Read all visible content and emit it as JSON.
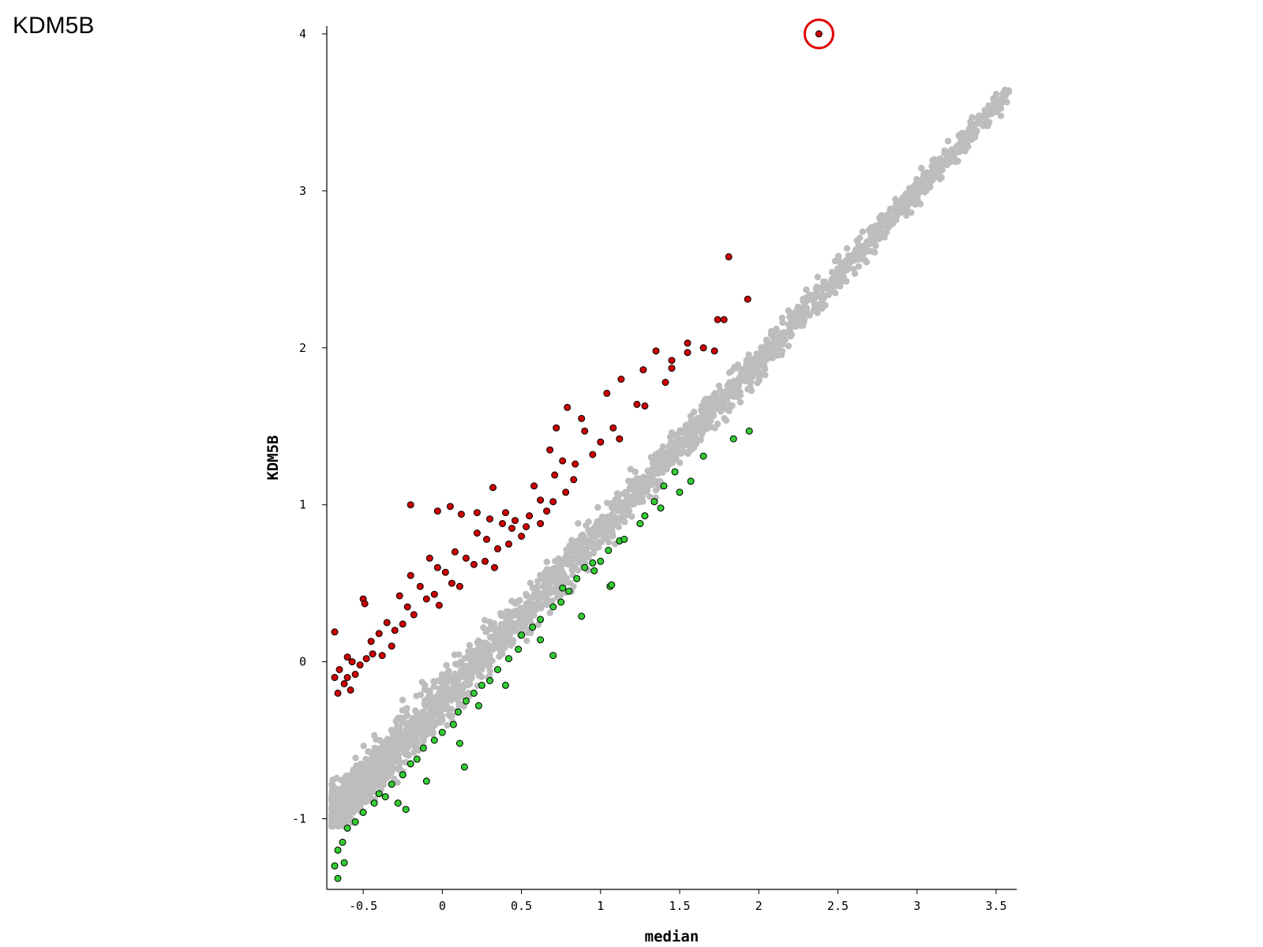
{
  "slide_title": "KDM5B",
  "chart_data": {
    "type": "scatter",
    "title": "",
    "xlabel": "median",
    "ylabel": "KDM5B",
    "xlim": [
      -0.73,
      3.63
    ],
    "ylim": [
      -1.45,
      4.05
    ],
    "x_ticks": [
      -0.5,
      0,
      0.5,
      1,
      1.5,
      2,
      2.5,
      3,
      3.5
    ],
    "x_tick_labels": [
      "-0.5",
      "0",
      "0.5",
      "1",
      "1.5",
      "2",
      "2.5",
      "3",
      "3.5"
    ],
    "y_ticks": [
      -1,
      0,
      1,
      2,
      3,
      4
    ],
    "y_tick_labels": [
      "-1",
      "0",
      "1",
      "2",
      "3",
      "4"
    ],
    "grid": false,
    "colors": {
      "up": "#cc0000",
      "down": "#33cc33",
      "neutral": "#bdbdbd",
      "highlight_ring": "#e00000"
    },
    "highlighted_point": {
      "x": 2.38,
      "y": 4.0
    },
    "series": [
      {
        "kind": "up",
        "color": "#cc0000",
        "points": [
          [
            2.38,
            4.0
          ],
          [
            1.81,
            2.58
          ],
          [
            1.93,
            2.31
          ],
          [
            1.74,
            2.18
          ],
          [
            1.78,
            2.18
          ],
          [
            1.55,
            2.03
          ],
          [
            1.55,
            1.97
          ],
          [
            1.65,
            2.0
          ],
          [
            1.72,
            1.98
          ],
          [
            1.35,
            1.98
          ],
          [
            1.45,
            1.92
          ],
          [
            1.45,
            1.87
          ],
          [
            1.27,
            1.86
          ],
          [
            1.41,
            1.78
          ],
          [
            1.13,
            1.8
          ],
          [
            1.04,
            1.71
          ],
          [
            0.79,
            1.62
          ],
          [
            0.88,
            1.55
          ],
          [
            0.9,
            1.47
          ],
          [
            0.72,
            1.49
          ],
          [
            0.68,
            1.35
          ],
          [
            0.76,
            1.28
          ],
          [
            0.71,
            1.19
          ],
          [
            1.23,
            1.64
          ],
          [
            1.28,
            1.63
          ],
          [
            1.08,
            1.49
          ],
          [
            1.12,
            1.42
          ],
          [
            0.84,
            1.26
          ],
          [
            0.58,
            1.12
          ],
          [
            0.32,
            1.11
          ],
          [
            -0.2,
            1.0
          ],
          [
            -0.03,
            0.96
          ],
          [
            0.05,
            0.99
          ],
          [
            0.12,
            0.94
          ],
          [
            0.22,
            0.95
          ],
          [
            0.3,
            0.91
          ],
          [
            0.38,
            0.88
          ],
          [
            0.46,
            0.9
          ],
          [
            0.55,
            0.93
          ],
          [
            0.62,
            1.03
          ],
          [
            0.22,
            0.82
          ],
          [
            0.28,
            0.78
          ],
          [
            0.35,
            0.72
          ],
          [
            0.42,
            0.75
          ],
          [
            0.5,
            0.8
          ],
          [
            0.08,
            0.7
          ],
          [
            0.15,
            0.66
          ],
          [
            0.2,
            0.62
          ],
          [
            0.27,
            0.64
          ],
          [
            0.33,
            0.6
          ],
          [
            -0.08,
            0.66
          ],
          [
            -0.03,
            0.6
          ],
          [
            0.02,
            0.57
          ],
          [
            0.06,
            0.5
          ],
          [
            0.11,
            0.48
          ],
          [
            -0.2,
            0.55
          ],
          [
            -0.14,
            0.48
          ],
          [
            -0.1,
            0.4
          ],
          [
            -0.05,
            0.43
          ],
          [
            -0.02,
            0.36
          ],
          [
            -0.27,
            0.42
          ],
          [
            -0.22,
            0.35
          ],
          [
            -0.18,
            0.3
          ],
          [
            -0.25,
            0.24
          ],
          [
            -0.3,
            0.2
          ],
          [
            -0.35,
            0.25
          ],
          [
            -0.4,
            0.18
          ],
          [
            -0.45,
            0.13
          ],
          [
            -0.5,
            0.4
          ],
          [
            -0.49,
            0.37
          ],
          [
            -0.44,
            0.05
          ],
          [
            -0.48,
            0.02
          ],
          [
            -0.52,
            -0.02
          ],
          [
            -0.57,
            0.0
          ],
          [
            -0.6,
            0.03
          ],
          [
            -0.65,
            -0.05
          ],
          [
            -0.68,
            -0.1
          ],
          [
            -0.66,
            -0.2
          ],
          [
            -0.62,
            -0.14
          ],
          [
            -0.58,
            -0.18
          ],
          [
            -0.55,
            -0.08
          ],
          [
            -0.6,
            -0.1
          ],
          [
            -0.68,
            0.19
          ],
          [
            -0.38,
            0.04
          ],
          [
            -0.32,
            0.1
          ],
          [
            0.4,
            0.95
          ],
          [
            0.44,
            0.85
          ],
          [
            0.53,
            0.86
          ],
          [
            0.62,
            0.88
          ],
          [
            0.66,
            0.96
          ],
          [
            0.7,
            1.02
          ],
          [
            0.78,
            1.08
          ],
          [
            0.83,
            1.16
          ],
          [
            0.95,
            1.32
          ],
          [
            1.0,
            1.4
          ]
        ]
      },
      {
        "kind": "down",
        "color": "#33cc33",
        "points": [
          [
            1.94,
            1.47
          ],
          [
            1.84,
            1.42
          ],
          [
            1.65,
            1.31
          ],
          [
            1.57,
            1.15
          ],
          [
            1.5,
            1.08
          ],
          [
            1.47,
            1.21
          ],
          [
            1.4,
            1.12
          ],
          [
            1.38,
            0.98
          ],
          [
            1.34,
            1.02
          ],
          [
            1.28,
            0.93
          ],
          [
            1.25,
            0.88
          ],
          [
            1.12,
            0.77
          ],
          [
            1.05,
            0.71
          ],
          [
            1.0,
            0.64
          ],
          [
            0.95,
            0.63
          ],
          [
            0.9,
            0.6
          ],
          [
            1.06,
            0.48
          ],
          [
            0.85,
            0.53
          ],
          [
            0.8,
            0.45
          ],
          [
            0.75,
            0.38
          ],
          [
            0.7,
            0.35
          ],
          [
            0.62,
            0.27
          ],
          [
            0.57,
            0.22
          ],
          [
            0.5,
            0.17
          ],
          [
            0.48,
            0.08
          ],
          [
            0.42,
            0.02
          ],
          [
            0.35,
            -0.05
          ],
          [
            0.3,
            -0.12
          ],
          [
            0.25,
            -0.15
          ],
          [
            0.2,
            -0.2
          ],
          [
            0.15,
            -0.25
          ],
          [
            0.1,
            -0.32
          ],
          [
            0.07,
            -0.4
          ],
          [
            0.0,
            -0.45
          ],
          [
            -0.05,
            -0.5
          ],
          [
            -0.12,
            -0.55
          ],
          [
            -0.16,
            -0.62
          ],
          [
            -0.2,
            -0.65
          ],
          [
            -0.25,
            -0.72
          ],
          [
            -0.32,
            -0.78
          ],
          [
            -0.36,
            -0.86
          ],
          [
            -0.43,
            -0.9
          ],
          [
            -0.5,
            -0.96
          ],
          [
            -0.55,
            -1.02
          ],
          [
            -0.6,
            -1.06
          ],
          [
            -0.63,
            -1.15
          ],
          [
            -0.66,
            -1.2
          ],
          [
            -0.68,
            -1.3
          ],
          [
            -0.66,
            -1.38
          ],
          [
            -0.62,
            -1.28
          ],
          [
            -0.28,
            -0.9
          ],
          [
            -0.23,
            -0.94
          ],
          [
            -0.1,
            -0.76
          ],
          [
            0.14,
            -0.67
          ],
          [
            0.11,
            -0.52
          ],
          [
            0.7,
            0.04
          ],
          [
            0.88,
            0.29
          ],
          [
            0.4,
            -0.15
          ],
          [
            0.62,
            0.14
          ],
          [
            0.76,
            0.47
          ],
          [
            1.07,
            0.49
          ],
          [
            1.15,
            0.78
          ],
          [
            0.96,
            0.58
          ],
          [
            0.23,
            -0.28
          ],
          [
            -0.4,
            -0.84
          ]
        ]
      }
    ]
  }
}
